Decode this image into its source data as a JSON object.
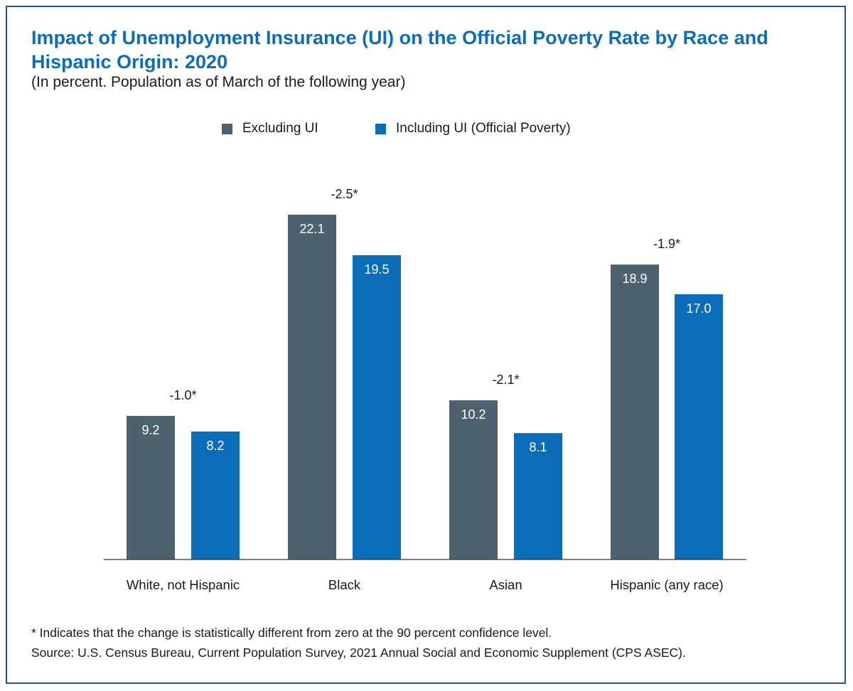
{
  "header": {
    "title": "Impact of Unemployment Insurance (UI) on the Official Poverty Rate by Race and Hispanic Origin: 2020",
    "subtitle": "(In percent. Population as of March of the following year)"
  },
  "legend": {
    "items": [
      {
        "label": "Excluding UI",
        "color": "#4D626F"
      },
      {
        "label": "Including UI (Official Poverty)",
        "color": "#0B6DB7"
      }
    ]
  },
  "chart_data": {
    "type": "bar",
    "categories": [
      "White, not Hispanic",
      "Black",
      "Asian",
      "Hispanic (any race)"
    ],
    "series": [
      {
        "name": "Excluding UI",
        "color": "#4D626F",
        "values": [
          9.2,
          22.1,
          10.2,
          18.9
        ],
        "labels": [
          "9.2",
          "22.1",
          "10.2",
          "18.9"
        ]
      },
      {
        "name": "Including UI (Official Poverty)",
        "color": "#0B6DB7",
        "values": [
          8.2,
          19.5,
          8.1,
          17.0
        ],
        "labels": [
          "8.2",
          "19.5",
          "8.1",
          "17.0"
        ]
      }
    ],
    "annotations": [
      "-1.0*",
      "-2.5*",
      "-2.1*",
      "-1.9*"
    ],
    "ylim": [
      0,
      25
    ],
    "legend_position": "top-center",
    "grid": false
  },
  "footnotes": {
    "note": "* Indicates that the change is statistically different from zero at the 90 percent confidence level.",
    "source": "Source: U.S. Census Bureau, Current Population Survey, 2021 Annual Social and Economic Supplement (CPS ASEC)."
  }
}
